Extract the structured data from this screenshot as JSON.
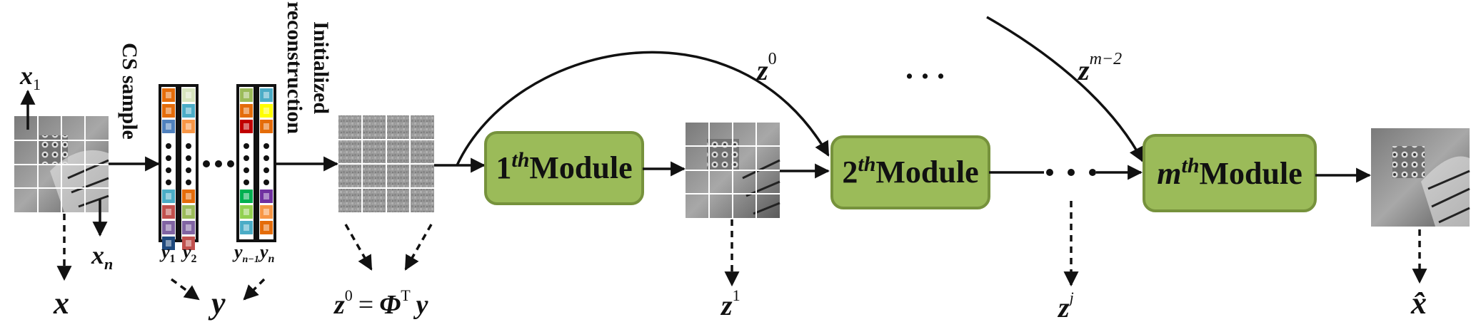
{
  "labels": {
    "cs_sample": "CS sample",
    "initialized": "Initialized",
    "reconstruction": "reconstruction",
    "ellipsis": ". . ."
  },
  "math": {
    "x1_base": "x",
    "x1_sub": "1",
    "xn_base": "x",
    "xn_sub": "n",
    "x": "x",
    "y1_base": "y",
    "y1_sub": "1",
    "y2_base": "y",
    "y2_sub": "2",
    "yn1_base": "y",
    "yn1_sub": "n−1",
    "yn_base": "y",
    "yn_sub": "n",
    "y": "y",
    "z0_eq_z": "z",
    "z0_eq_sup": "0",
    "z0_eq_eq": "=",
    "z0_eq_phi": "Φ",
    "z0_eq_T": "T",
    "z0_eq_y": "y",
    "z0_top_base": "z",
    "z0_top_sup": "0",
    "zm2_base": "z",
    "zm2_sup": "m−2",
    "z1_base": "z",
    "z1_sup": "1",
    "zj_base": "z",
    "zj_sup": "j",
    "xhat": "x̂"
  },
  "modules": [
    {
      "num": "1",
      "sup": "th",
      "word": "Module"
    },
    {
      "num": "2",
      "sup": "th",
      "word": "Module"
    },
    {
      "num": "m",
      "sup": "th",
      "word": "Module"
    }
  ],
  "colors": {
    "module_fill": "#9bbb59",
    "module_stroke": "#76923c",
    "block_colors_col1": [
      "#e46c0a",
      "#e46c0a",
      "#4f81bd",
      "#4bacc6",
      "#c0504d",
      "#8064a2",
      "#1f497d"
    ],
    "block_colors_col2": [
      "#d7e4bd",
      "#4bacc6",
      "#f79646",
      "#e46c0a",
      "#9bbb59",
      "#8064a2",
      "#c0504d"
    ],
    "block_colors_col3": [
      "#9bbb59",
      "#e46c0a",
      "#c00000",
      "#00b050",
      "#92d050",
      "#4bacc6"
    ],
    "block_colors_col4": [
      "#4bacc6",
      "#ffff00",
      "#e46c0a",
      "#7030a0",
      "#f79646",
      "#e46c0a"
    ]
  }
}
